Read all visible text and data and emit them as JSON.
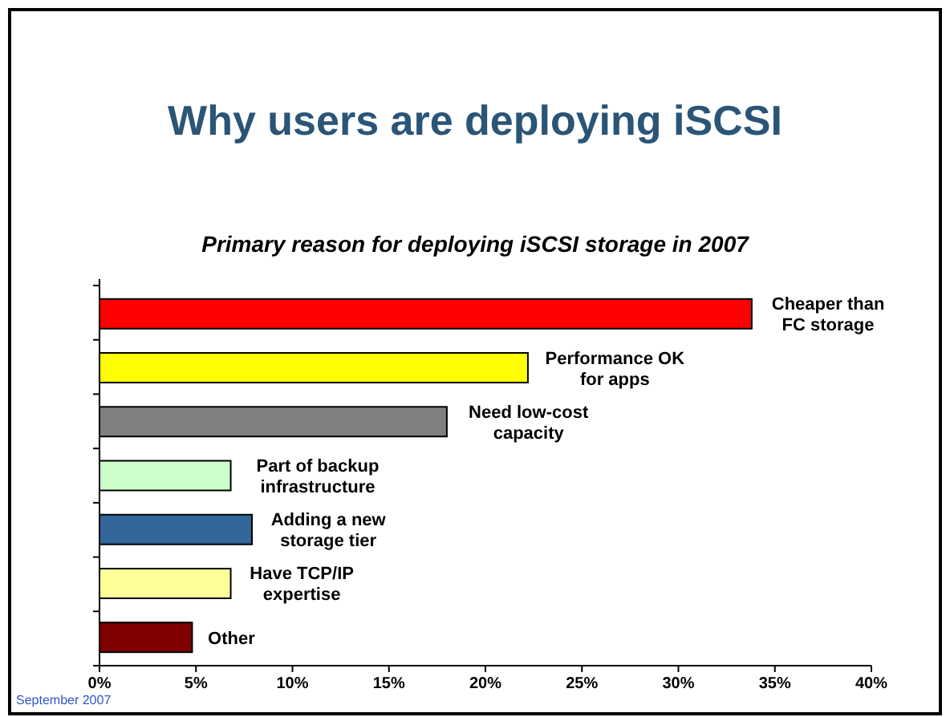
{
  "chart_data": {
    "type": "bar",
    "orientation": "horizontal",
    "title": "Why users are deploying iSCSI",
    "subtitle": "Primary reason for deploying iSCSI storage in 2007",
    "categories": [
      "Cheaper than\nFC storage",
      "Performance OK\nfor apps",
      "Need low-cost\ncapacity",
      "Part of backup\ninfrastructure",
      "Adding a new\nstorage tier",
      "Have TCP/IP\nexpertise",
      "Other"
    ],
    "values": [
      33.8,
      22.2,
      18.0,
      6.8,
      7.9,
      6.8,
      4.8
    ],
    "colors": [
      "#ff0000",
      "#ffff00",
      "#808080",
      "#ccffcc",
      "#336699",
      "#ffff99",
      "#800000"
    ],
    "xlim": [
      0,
      40
    ],
    "xticks": [
      {
        "value": 0,
        "label": "0%"
      },
      {
        "value": 5,
        "label": "5%"
      },
      {
        "value": 10,
        "label": "10%"
      },
      {
        "value": 15,
        "label": "15%"
      },
      {
        "value": 20,
        "label": "20%"
      },
      {
        "value": 25,
        "label": "25%"
      },
      {
        "value": 30,
        "label": "30%"
      },
      {
        "value": 35,
        "label": "35%"
      },
      {
        "value": 40,
        "label": "40%"
      }
    ],
    "grid": false,
    "annotations": [
      "September 2007"
    ]
  }
}
